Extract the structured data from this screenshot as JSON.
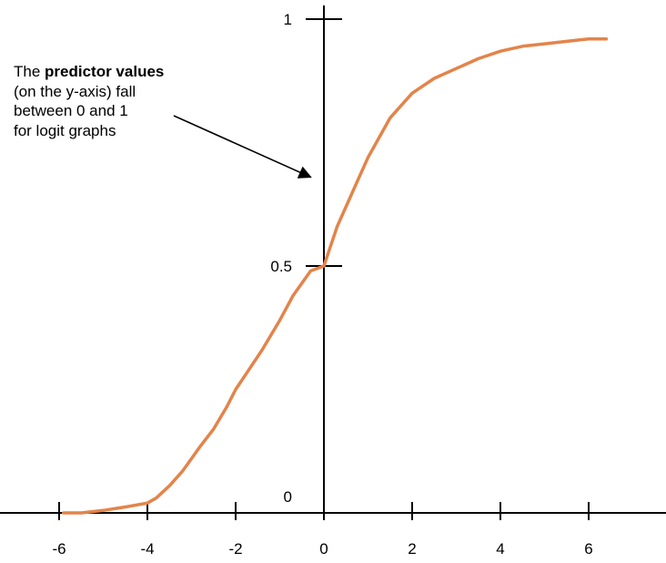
{
  "chart_data": {
    "type": "line",
    "title": "",
    "xlabel": "",
    "ylabel": "",
    "xlim": [
      -6.7,
      7.9
    ],
    "ylim": [
      0,
      1
    ],
    "x_ticks": [
      -6,
      -4,
      -2,
      0,
      2,
      4,
      6
    ],
    "x_tick_labels": [
      "-6",
      "-4",
      "-2",
      "0",
      "2",
      "4",
      "6"
    ],
    "y_ticks": [
      0,
      0.5,
      1
    ],
    "y_tick_labels": [
      "0",
      "0.5",
      "1"
    ],
    "grid": false,
    "line_color": "#e3844a",
    "series": [
      {
        "x": [
          -5.9,
          -5.5,
          -5.0,
          -4.5,
          -4.0,
          -3.8,
          -3.5,
          -3.2,
          -3.0,
          -2.8,
          -2.5,
          -2.2,
          -2.0,
          -1.7,
          -1.4,
          -1.0,
          -0.7,
          -0.3,
          0.0,
          0.3,
          0.7,
          1.0,
          1.5,
          2.0,
          2.5,
          3.0,
          3.5,
          4.0,
          4.5,
          5.0,
          5.5,
          6.0,
          6.4
        ],
        "y": [
          0.0,
          0.0,
          0.005,
          0.012,
          0.02,
          0.03,
          0.055,
          0.085,
          0.11,
          0.135,
          0.17,
          0.215,
          0.25,
          0.29,
          0.33,
          0.39,
          0.44,
          0.49,
          0.5,
          0.58,
          0.66,
          0.72,
          0.8,
          0.85,
          0.88,
          0.9,
          0.92,
          0.935,
          0.945,
          0.95,
          0.955,
          0.96,
          0.96
        ]
      }
    ],
    "annotations": [
      {
        "text_before": "The ",
        "bold_text": "predictor values",
        "lines": [
          "(on the y-axis) fall",
          "between 0 and 1",
          "for logit graphs"
        ],
        "arrow_target": {
          "x": -0.3,
          "y": 0.68
        }
      }
    ]
  }
}
